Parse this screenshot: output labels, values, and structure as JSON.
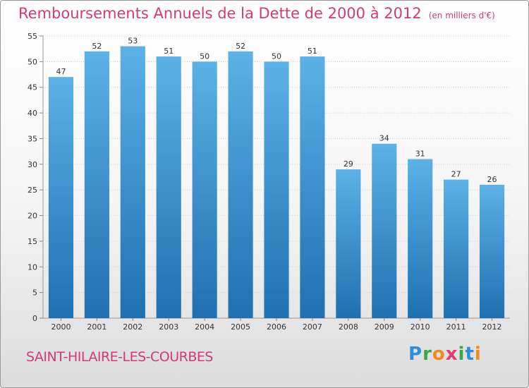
{
  "header": {
    "title": "Remboursements Annuels de la Dette de 2000 à 2012",
    "unit": "(en milliers d'€)"
  },
  "footer": {
    "commune": "SAINT-HILAIRE-LES-COURBES",
    "logo": "Proxiti"
  },
  "colors": {
    "title": "#d13a78",
    "bar_top": "#5cb1e8",
    "bar_bottom": "#1f70b0"
  },
  "chart_data": {
    "type": "bar",
    "title": "Remboursements Annuels de la Dette de 2000 à 2012",
    "subtitle": "(en milliers d'€)",
    "xlabel": "",
    "ylabel": "",
    "categories": [
      "2000",
      "2001",
      "2002",
      "2003",
      "2004",
      "2005",
      "2006",
      "2007",
      "2008",
      "2009",
      "2010",
      "2011",
      "2012"
    ],
    "values": [
      47,
      52,
      53,
      51,
      50,
      52,
      50,
      51,
      29,
      34,
      31,
      27,
      26
    ],
    "ylim": [
      0,
      55
    ],
    "yticks": [
      0,
      5,
      10,
      15,
      20,
      25,
      30,
      35,
      40,
      45,
      50,
      55
    ],
    "grid": true
  }
}
